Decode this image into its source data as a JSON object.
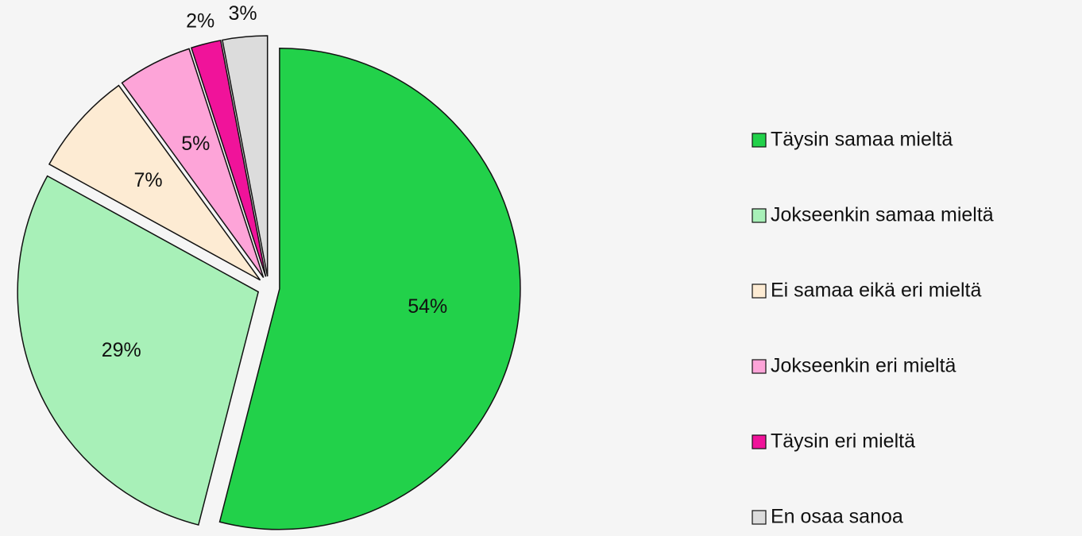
{
  "chart_data": {
    "type": "pie",
    "categories": [
      "Täysin samaa mieltä",
      "Jokseenkin samaa mieltä",
      "Ei samaa eikä eri mieltä",
      "Jokseenkin eri mieltä",
      "Täysin eri mieltä",
      "En osaa sanoa"
    ],
    "values": [
      54,
      29,
      7,
      5,
      2,
      3
    ],
    "value_labels": [
      "54%",
      "29%",
      "7%",
      "5%",
      "2%",
      "3%"
    ],
    "colors": [
      "#22d14a",
      "#a8f0b8",
      "#fdebd3",
      "#fda4d8",
      "#f0139a",
      "#dcdcdc"
    ],
    "legend": "right"
  }
}
